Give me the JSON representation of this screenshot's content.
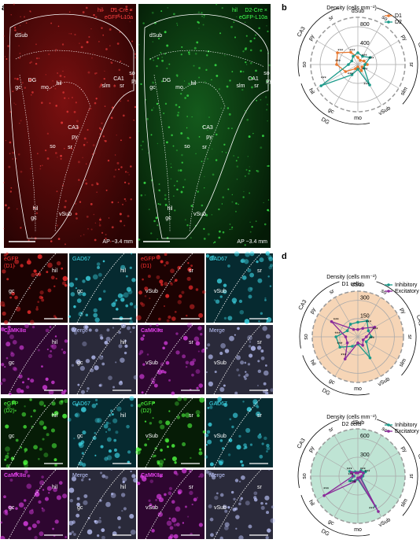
{
  "panel_letters": [
    "a",
    "b",
    "c",
    "d"
  ],
  "images": [
    {
      "title": [
        "D1-Cre ×",
        "eGFP-L10a"
      ],
      "prefix": "hil",
      "scale": "AP −3.4 mm",
      "tint": "red",
      "regions": [
        "dSub",
        "gc",
        "DG",
        "mo",
        "hil",
        "CA1",
        "slm",
        "sr",
        "so",
        "py",
        "CA3",
        "py",
        "so",
        "sr",
        "hil",
        "gc",
        "vSub"
      ]
    },
    {
      "title": [
        "D2-Cre ×",
        "eGFP-L10a"
      ],
      "prefix": "hil",
      "scale": "AP −3.4 mm",
      "tint": "green",
      "regions": [
        "dSub",
        "gc",
        "DG",
        "mo",
        "hil",
        "CA1",
        "slm",
        "sr",
        "so",
        "py",
        "CA3",
        "py",
        "so",
        "sr",
        "hil",
        "gc",
        "vSub"
      ]
    }
  ],
  "tiles": [
    {
      "label": [
        "eGFP",
        "(D1)"
      ],
      "tint": "red",
      "regions": [
        "gc",
        "hil"
      ]
    },
    {
      "label": [
        "GAD67"
      ],
      "tint": "cyan",
      "regions": [
        "gc",
        "hil"
      ]
    },
    {
      "label": [
        "eGFP",
        "(D1)"
      ],
      "tint": "red",
      "regions": [
        "vSub",
        "sr"
      ]
    },
    {
      "label": [
        "GAD67"
      ],
      "tint": "cyan",
      "regions": [
        "vSub",
        "sr"
      ]
    },
    {
      "label": [
        "CaMKIIα"
      ],
      "tint": "magenta",
      "regions": [
        "gc",
        "hil"
      ]
    },
    {
      "label": [
        "Merge"
      ],
      "tint": "merge",
      "regions": [
        "gc",
        "hil"
      ]
    },
    {
      "label": [
        "CaMKIIα"
      ],
      "tint": "magenta",
      "regions": [
        "vSub",
        "sr"
      ]
    },
    {
      "label": [
        "Merge"
      ],
      "tint": "merge",
      "regions": [
        "vSub",
        "sr"
      ]
    },
    {
      "label": [
        "eGFP",
        "(D2)"
      ],
      "tint": "green",
      "regions": [
        "gc",
        "hil"
      ]
    },
    {
      "label": [
        "GAD67"
      ],
      "tint": "cyan",
      "regions": [
        "gc",
        "hil"
      ]
    },
    {
      "label": [
        "eGFP",
        "(D2)"
      ],
      "tint": "green",
      "regions": [
        "vSub",
        "sr"
      ]
    },
    {
      "label": [
        "GAD67"
      ],
      "tint": "cyan",
      "regions": [
        "vSub",
        "sr"
      ]
    },
    {
      "label": [
        "CaMKIIα"
      ],
      "tint": "magenta",
      "regions": [
        "gc",
        "hil"
      ]
    },
    {
      "label": [
        "Merge"
      ],
      "tint": "merge",
      "regions": [
        "gc",
        "hil"
      ]
    },
    {
      "label": [
        "CaMKIIα"
      ],
      "tint": "magenta",
      "regions": [
        "vSub",
        "sr"
      ]
    },
    {
      "label": [
        "Merge"
      ],
      "tint": "merge",
      "regions": [
        "vSub",
        "sr"
      ]
    }
  ],
  "chart_data": [
    {
      "type": "radar",
      "title": "Density (cells mm⁻²)",
      "background": "#ffffff",
      "categories": [
        "dSub",
        "so",
        "py",
        "sr",
        "slm",
        "vSub",
        "mo",
        "gc",
        "hil",
        "so",
        "py",
        "sr"
      ],
      "groups": [
        "CA1",
        "DG",
        "CA3"
      ],
      "rlim": [
        0,
        1000
      ],
      "rticks": [
        400,
        800
      ],
      "series": [
        {
          "name": "D1",
          "color": "#e8772e",
          "values": [
            150,
            100,
            150,
            200,
            100,
            150,
            50,
            100,
            300,
            450,
            500,
            300
          ]
        },
        {
          "name": "D2",
          "color": "#1a9a8a",
          "values": [
            250,
            200,
            300,
            150,
            150,
            500,
            100,
            250,
            900,
            200,
            150,
            200
          ]
        }
      ],
      "significance": [
        null,
        "***",
        "***",
        null,
        "***",
        "***",
        null,
        "***",
        "***",
        "***",
        "***",
        "***"
      ]
    },
    {
      "type": "radar",
      "title": "Density (cells mm⁻²)",
      "subtitle": "D1 cells",
      "background": "#f6d5b6",
      "categories": [
        "dSub",
        "so",
        "py",
        "sr",
        "slm",
        "vSub",
        "mo",
        "gc",
        "hil",
        "so",
        "py",
        "sr"
      ],
      "groups": [
        "CA1",
        "DG",
        "CA3"
      ],
      "rlim": [
        0,
        375
      ],
      "rticks": [
        150,
        300
      ],
      "series": [
        {
          "name": "Inhibitory",
          "color": "#1a9a8a",
          "values": [
            120,
            150,
            100,
            110,
            80,
            200,
            60,
            90,
            170,
            180,
            100,
            120
          ]
        },
        {
          "name": "Excitatory",
          "color": "#8b2a9b",
          "values": [
            60,
            80,
            160,
            70,
            50,
            80,
            50,
            210,
            100,
            100,
            250,
            70
          ]
        }
      ],
      "significance": [
        null,
        "***",
        "***",
        "***",
        null,
        null,
        null,
        "***",
        "***",
        "***",
        "***",
        null
      ]
    },
    {
      "type": "radar",
      "title": "Density (cells mm⁻²)",
      "subtitle": "D2 cells",
      "background": "#bfe4d4",
      "categories": [
        "dSub",
        "so",
        "py",
        "sr",
        "slm",
        "vSub",
        "mo",
        "gc",
        "hil",
        "so",
        "py",
        "sr"
      ],
      "groups": [
        "CA1",
        "DG",
        "CA3"
      ],
      "rlim": [
        0,
        750
      ],
      "rticks": [
        300,
        600
      ],
      "series": [
        {
          "name": "Inhibitory",
          "color": "#1a9a8a",
          "values": [
            60,
            100,
            140,
            80,
            60,
            550,
            50,
            80,
            150,
            60,
            150,
            80
          ]
        },
        {
          "name": "Excitatory",
          "color": "#8b2a9b",
          "values": [
            50,
            80,
            100,
            60,
            40,
            650,
            30,
            100,
            620,
            80,
            120,
            60
          ]
        }
      ],
      "significance": [
        null,
        "***",
        "***",
        null,
        null,
        "***",
        null,
        "***",
        "***",
        "***",
        "***",
        null
      ]
    }
  ]
}
